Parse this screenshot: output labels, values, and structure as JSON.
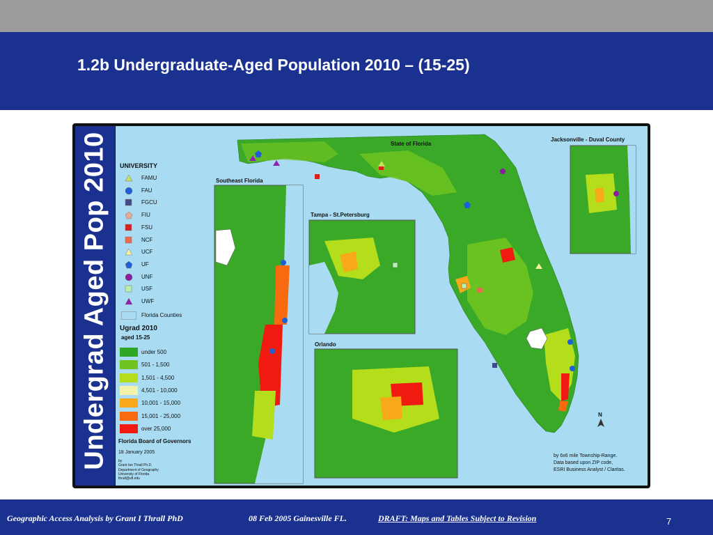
{
  "slide": {
    "title": "1.2b Undergraduate-Aged Population 2010 – (15-25)",
    "vertical_title": "Undergrad Aged Pop 2010",
    "page_number": "7"
  },
  "footer": {
    "author": "Geographic Access Analysis by Grant I Thrall PhD",
    "date_place": "08 Feb 2005  Gainesville FL.",
    "draft": "DRAFT:  Maps and Tables Subject to Revision"
  },
  "map": {
    "main_label": "State of Florida",
    "insets": {
      "southeast": "Southeast Florida",
      "tampa": "Tampa - St.Petersburg",
      "orlando": "Orlando",
      "jacksonville": "Jacksonville - Duval County"
    },
    "legend": {
      "university_title": "UNIVERSITY",
      "universities": [
        {
          "name": "FAMU",
          "symbol": "triangle",
          "color": "#c8e060"
        },
        {
          "name": "FAU",
          "symbol": "circle",
          "color": "#1f5fd6"
        },
        {
          "name": "FGCU",
          "symbol": "square",
          "color": "#404a8a"
        },
        {
          "name": "FIU",
          "symbol": "pentagon",
          "color": "#e8a898"
        },
        {
          "name": "FSU",
          "symbol": "square",
          "color": "#d82020"
        },
        {
          "name": "NCF",
          "symbol": "square",
          "color": "#e86a50"
        },
        {
          "name": "UCF",
          "symbol": "triangle",
          "color": "#f4f0a0"
        },
        {
          "name": "UF",
          "symbol": "pentagon",
          "color": "#1f5fd6"
        },
        {
          "name": "UNF",
          "symbol": "circle",
          "color": "#8a1ea0"
        },
        {
          "name": "USF",
          "symbol": "square",
          "color": "#b8f0b0"
        },
        {
          "name": "UWF",
          "symbol": "triangle",
          "color": "#9020b0"
        }
      ],
      "counties_label": "Florida Counties",
      "ugrad_title": "Ugrad 2010",
      "ugrad_subtitle": "aged 15-25",
      "classes": [
        {
          "label": "under 500",
          "color": "#2ea822"
        },
        {
          "label": "501 - 1,500",
          "color": "#70c420"
        },
        {
          "label": "1,501 - 4,500",
          "color": "#b4de1c"
        },
        {
          "label": "4,501 - 10,000",
          "color": "#f2f2a8"
        },
        {
          "label": "10,001 - 15,000",
          "color": "#f8a818"
        },
        {
          "label": "15,001 - 25,000",
          "color": "#f86a10"
        },
        {
          "label": "over 25,000",
          "color": "#f01a10"
        }
      ],
      "board": "Florida Board of Governors",
      "date": "18 January 2005",
      "credits": [
        "by",
        "Grant Ian Thrall Ph.D.",
        "Department of Geography",
        "University of Florida",
        "thrall@ufl.edu"
      ],
      "north": "N",
      "source_lines": [
        "by 6x6 mile Township-Range.",
        "Data based upon ZIP code,",
        "ESRI Business Analyst / Claritas."
      ]
    }
  },
  "colors": {
    "header_band": "#1a3190",
    "top_bar": "#9c9c9c",
    "water": "#a9dcf2"
  }
}
